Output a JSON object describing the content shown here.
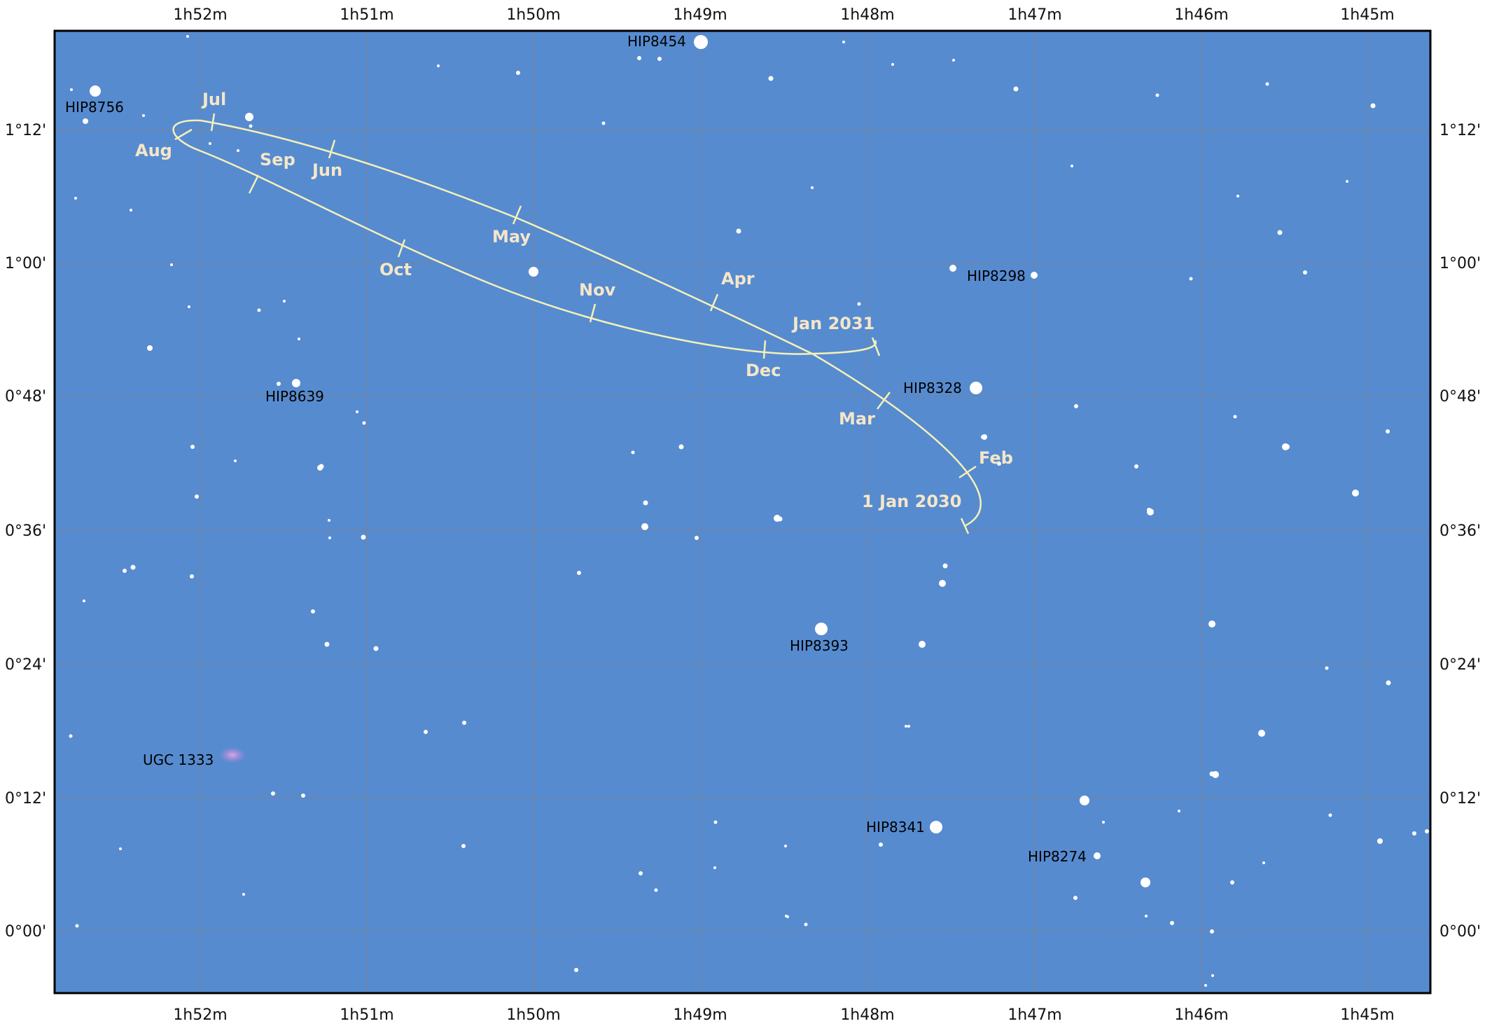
{
  "colors": {
    "sky": "#568bd0",
    "grid": "#7a8296",
    "path": "#f5f0b8",
    "label_month": "#f5e6c8",
    "star": "#ffffff",
    "frame": "#000000"
  },
  "axes": {
    "ra_ticks": [
      "1h52m",
      "1h51m",
      "1h50m",
      "1h49m",
      "1h48m",
      "1h47m",
      "1h46m",
      "1h45m"
    ],
    "dec_ticks": [
      "1°12'",
      "1°00'",
      "0°48'",
      "0°36'",
      "0°24'",
      "0°12'",
      "0°00'"
    ]
  },
  "path_labels": [
    {
      "text": "Jul"
    },
    {
      "text": "Aug"
    },
    {
      "text": "Sep"
    },
    {
      "text": "Jun"
    },
    {
      "text": "May"
    },
    {
      "text": "Oct"
    },
    {
      "text": "Nov"
    },
    {
      "text": "Apr"
    },
    {
      "text": "Jan 2031"
    },
    {
      "text": "Dec"
    },
    {
      "text": "Mar"
    },
    {
      "text": "Feb"
    },
    {
      "text": "1 Jan 2030"
    }
  ],
  "star_labels": [
    {
      "text": "HIP8454"
    },
    {
      "text": "HIP8756"
    },
    {
      "text": "HIP8298"
    },
    {
      "text": "HIP8328"
    },
    {
      "text": "HIP8639"
    },
    {
      "text": "HIP8393"
    },
    {
      "text": "HIP8341"
    },
    {
      "text": "HIP8274"
    },
    {
      "text": "UGC 1333"
    }
  ]
}
